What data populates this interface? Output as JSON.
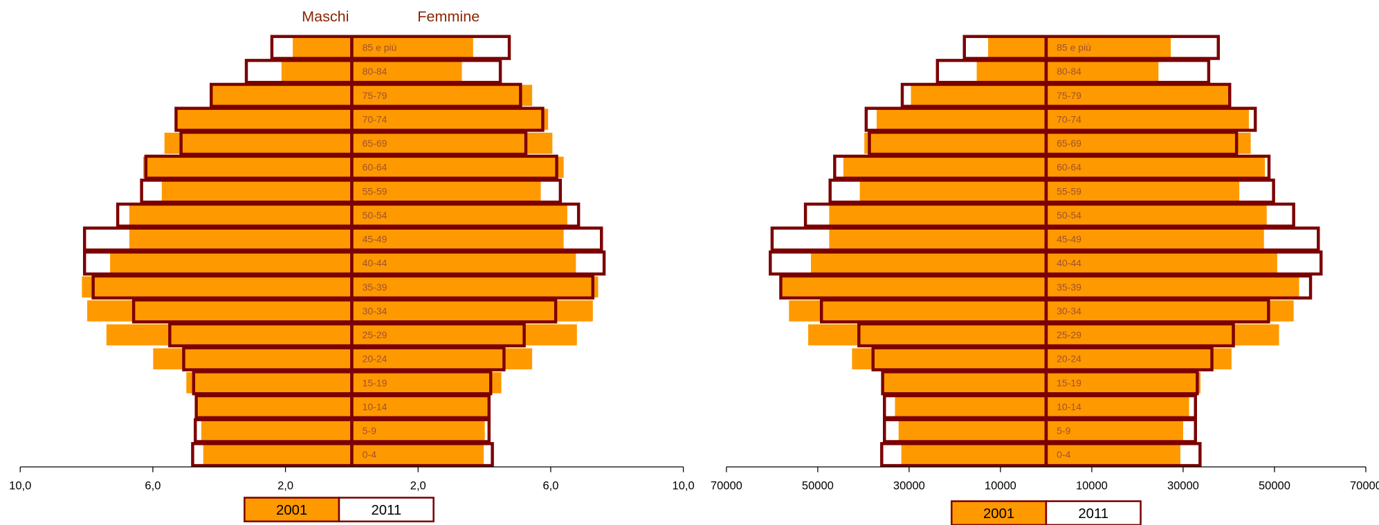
{
  "chart_data": [
    {
      "type": "pyramid",
      "left_label": "Maschi",
      "right_label": "Femmine",
      "categories": [
        "0-4",
        "5-9",
        "10-14",
        "15-19",
        "20-24",
        "25-29",
        "30-34",
        "35-39",
        "40-44",
        "45-49",
        "50-54",
        "55-59",
        "60-64",
        "65-69",
        "70-74",
        "75-79",
        "80-84",
        "85 e più"
      ],
      "series": [
        {
          "name": "2001",
          "color": "#ff9900",
          "style": "fill",
          "males": [
            4.48,
            4.54,
            4.64,
            4.99,
            5.99,
            7.4,
            7.98,
            8.14,
            7.29,
            6.71,
            6.71,
            5.73,
            6.29,
            5.65,
            5.3,
            4.22,
            2.12,
            1.78
          ],
          "females": [
            3.98,
            4.01,
            4.16,
            4.51,
            5.44,
            6.79,
            7.27,
            7.43,
            6.76,
            6.39,
            6.5,
            5.7,
            6.39,
            6.05,
            5.92,
            5.44,
            3.32,
            3.66
          ]
        },
        {
          "name": "2011",
          "color": "#7b0000",
          "style": "outline",
          "males": [
            4.8,
            4.72,
            4.69,
            4.77,
            5.07,
            5.49,
            6.58,
            7.8,
            8.06,
            8.06,
            7.06,
            6.34,
            6.21,
            5.15,
            5.3,
            4.24,
            3.18,
            2.41
          ],
          "females": [
            4.24,
            4.14,
            4.14,
            4.19,
            4.59,
            5.2,
            6.15,
            7.27,
            7.61,
            7.53,
            6.84,
            6.29,
            6.18,
            5.25,
            5.76,
            5.09,
            4.48,
            4.75
          ]
        }
      ],
      "xlim": [
        -10,
        10
      ],
      "xticks": [
        {
          "value": -10,
          "label": "10,0"
        },
        {
          "value": -6,
          "label": "6,0"
        },
        {
          "value": -2,
          "label": "2,0"
        },
        {
          "value": 2,
          "label": "2,0"
        },
        {
          "value": 6,
          "label": "6,0"
        },
        {
          "value": 10,
          "label": "10,0"
        }
      ]
    },
    {
      "type": "pyramid",
      "categories": [
        "0-4",
        "5-9",
        "10-14",
        "15-19",
        "20-24",
        "25-29",
        "30-34",
        "35-39",
        "40-44",
        "45-49",
        "50-54",
        "55-59",
        "60-64",
        "65-69",
        "70-74",
        "75-79",
        "80-84",
        "85 e più"
      ],
      "series": [
        {
          "name": "2001",
          "color": "#ff9900",
          "style": "fill",
          "males": [
            31700,
            32300,
            33100,
            35600,
            42500,
            52100,
            56300,
            58100,
            51500,
            47500,
            47500,
            40800,
            44400,
            39800,
            37100,
            29600,
            15200,
            12700
          ],
          "females": [
            29400,
            30000,
            31300,
            33800,
            40600,
            51000,
            54200,
            55400,
            50600,
            47700,
            48300,
            42300,
            47900,
            44800,
            44400,
            40200,
            24600,
            27300
          ]
        },
        {
          "name": "2011",
          "color": "#7b0000",
          "style": "outline",
          "males": [
            36000,
            35400,
            35400,
            35800,
            37900,
            41000,
            49200,
            58100,
            60400,
            60000,
            52700,
            47300,
            46300,
            38700,
            39400,
            31500,
            23800,
            17900
          ],
          "females": [
            33700,
            32700,
            32700,
            33100,
            36300,
            41000,
            48700,
            57900,
            60200,
            59600,
            54200,
            49800,
            48800,
            41700,
            45800,
            40200,
            35600,
            37700
          ]
        }
      ],
      "xlim": [
        -70000,
        70000
      ],
      "xticks": [
        {
          "value": -70000,
          "label": "70000"
        },
        {
          "value": -50000,
          "label": "50000"
        },
        {
          "value": -30000,
          "label": "30000"
        },
        {
          "value": -10000,
          "label": "10000"
        },
        10000,
        30000,
        50000,
        70000
      ]
    }
  ]
}
